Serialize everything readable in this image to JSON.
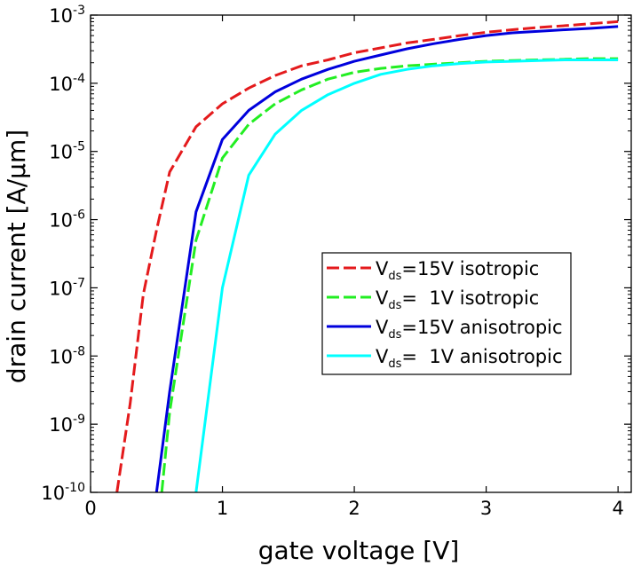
{
  "chart_data": {
    "type": "line",
    "xlabel": "gate voltage [V]",
    "ylabel": "drain current [A/µm]",
    "xlim": [
      0,
      4.1
    ],
    "ylim": [
      1e-10,
      0.001
    ],
    "yscale": "log",
    "grid": false,
    "legend_position": "center-right",
    "x_ticks": [
      "0",
      "1",
      "2",
      "3",
      "4"
    ],
    "y_ticks": [
      {
        "base": "10",
        "exp": "-3",
        "value": 0.001
      },
      {
        "base": "10",
        "exp": "-4",
        "value": 0.0001
      },
      {
        "base": "10",
        "exp": "-5",
        "value": 1e-05
      },
      {
        "base": "10",
        "exp": "-6",
        "value": 1e-06
      },
      {
        "base": "10",
        "exp": "-7",
        "value": 1e-07
      },
      {
        "base": "10",
        "exp": "-8",
        "value": 1e-08
      },
      {
        "base": "10",
        "exp": "-9",
        "value": 1e-09
      },
      {
        "base": "10",
        "exp": "-10",
        "value": 1e-10
      }
    ],
    "series": [
      {
        "name": "Vds=15V isotropic",
        "legend": {
          "main": "V",
          "sub": "ds",
          "rest": "=15V isotropic"
        },
        "color": "#e41a1c",
        "dashed": true,
        "x": [
          0.2,
          0.3,
          0.4,
          0.5,
          0.6,
          0.8,
          1.0,
          1.2,
          1.4,
          1.6,
          1.8,
          2.0,
          2.2,
          2.4,
          2.6,
          2.8,
          3.0,
          3.2,
          3.4,
          3.6,
          3.8,
          4.0
        ],
        "y": [
          1e-10,
          2e-09,
          8e-08,
          7e-07,
          5e-06,
          2.3e-05,
          5e-05,
          8.5e-05,
          0.00013,
          0.00018,
          0.00022,
          0.00028,
          0.00033,
          0.00039,
          0.00044,
          0.0005,
          0.00056,
          0.00061,
          0.00066,
          0.0007,
          0.00075,
          0.0008
        ]
      },
      {
        "name": "Vds=1V isotropic",
        "legend": {
          "main": "V",
          "sub": "ds",
          "rest": "=  1V isotropic"
        },
        "color": "#22ee22",
        "dashed": true,
        "x": [
          0.54,
          0.6,
          0.8,
          1.0,
          1.2,
          1.4,
          1.6,
          1.8,
          2.0,
          2.2,
          2.4,
          2.6,
          2.8,
          3.0,
          3.2,
          3.4,
          3.6,
          3.8,
          4.0
        ],
        "y": [
          1e-10,
          1.5e-09,
          5e-07,
          8e-06,
          2.5e-05,
          5e-05,
          8e-05,
          0.000115,
          0.000145,
          0.000165,
          0.00018,
          0.00019,
          0.0002,
          0.00021,
          0.000215,
          0.00022,
          0.000225,
          0.00023,
          0.00023
        ]
      },
      {
        "name": "Vds=15V anisotropic",
        "legend": {
          "main": "V",
          "sub": "ds",
          "rest": "=15V anisotropic"
        },
        "color": "#0000dd",
        "dashed": false,
        "x": [
          0.5,
          0.6,
          0.8,
          1.0,
          1.2,
          1.4,
          1.6,
          1.8,
          2.0,
          2.2,
          2.4,
          2.6,
          2.8,
          3.0,
          3.2,
          3.4,
          3.6,
          3.8,
          4.0
        ],
        "y": [
          1e-10,
          3e-09,
          1.3e-06,
          1.5e-05,
          4e-05,
          7.5e-05,
          0.000115,
          0.00016,
          0.00021,
          0.00026,
          0.00032,
          0.00038,
          0.00044,
          0.0005,
          0.00055,
          0.00058,
          0.00061,
          0.00064,
          0.00068
        ]
      },
      {
        "name": "Vds=1V anisotropic",
        "legend": {
          "main": "V",
          "sub": "ds",
          "rest": "=  1V anisotropic"
        },
        "color": "#00ffff",
        "dashed": false,
        "x": [
          0.8,
          1.0,
          1.2,
          1.4,
          1.6,
          1.8,
          2.0,
          2.2,
          2.4,
          2.6,
          2.8,
          3.0,
          3.2,
          3.4,
          3.6,
          3.8,
          4.0
        ],
        "y": [
          1e-10,
          1e-07,
          4.5e-06,
          1.8e-05,
          4e-05,
          6.8e-05,
          0.0001,
          0.000135,
          0.00016,
          0.00018,
          0.000195,
          0.000205,
          0.00021,
          0.000215,
          0.00022,
          0.00022,
          0.00022
        ]
      }
    ]
  }
}
